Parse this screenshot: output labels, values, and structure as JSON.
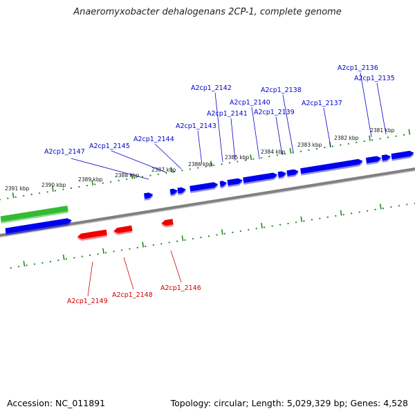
{
  "title": "Anaeromyxobacter dehalogenans 2CP-1, complete genome",
  "footer": {
    "accession": "Accession: NC_011891",
    "stats": "Topology: circular; Length: 5,029,329 bp; Genes: 4,528"
  },
  "colors": {
    "forward_gene": "#0000ee",
    "reverse_gene": "#ee0000",
    "highlight_gene": "#33bb33",
    "scale_tick": "#228822",
    "backbone": "#808080",
    "forward_label": "#0000cc",
    "reverse_label": "#cc0000"
  },
  "scale_labels": [
    "2391 kbp",
    "2390 kbp",
    "2389 kbp",
    "2388 kbp",
    "2387 kbp",
    "2386 kbp",
    "2385 kbp",
    "2384 kbp",
    "2383 kbp",
    "2382 kbp",
    "2381 kbp"
  ],
  "forward_genes": [
    "A2cp1_2147",
    "A2cp1_2145",
    "A2cp1_2144",
    "A2cp1_2143",
    "A2cp1_2142",
    "A2cp1_2141",
    "A2cp1_2140",
    "A2cp1_2139",
    "A2cp1_2138",
    "A2cp1_2137",
    "A2cp1_2136",
    "A2cp1_2135"
  ],
  "reverse_genes": [
    "A2cp1_2149",
    "A2cp1_2148",
    "A2cp1_2146"
  ]
}
